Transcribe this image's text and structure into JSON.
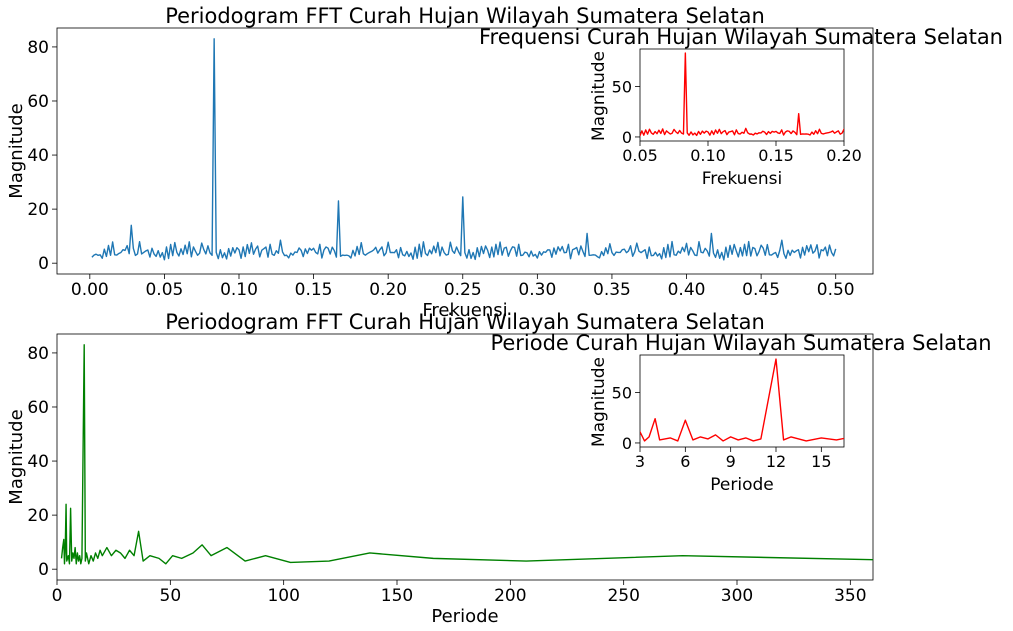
{
  "chart_data": [
    {
      "type": "line",
      "title": "Periodogram FFT Curah Hujan Wilayah Sumatera Selatan",
      "xlabel": "Frekuensi",
      "ylabel": "Magnitude",
      "xlim": [
        -0.022,
        0.525
      ],
      "ylim": [
        -4,
        87
      ],
      "xticks": [
        "0.00",
        "0.05",
        "0.10",
        "0.15",
        "0.20",
        "0.25",
        "0.30",
        "0.35",
        "0.40",
        "0.45",
        "0.50"
      ],
      "yticks": [
        "0",
        "20",
        "40",
        "60",
        "80"
      ],
      "grid": false,
      "series": [
        {
          "color": "#1f77b4",
          "base": [
            4,
            3,
            5,
            3,
            4,
            2,
            6,
            3,
            7,
            4,
            8,
            5,
            3,
            6,
            4,
            7,
            5,
            8,
            4,
            6,
            7,
            3,
            5,
            8,
            6,
            4,
            7,
            5,
            3,
            6
          ],
          "peaks": [
            {
              "x": 0.0278,
              "y": 14
            },
            {
              "x": 0.0833,
              "y": 83
            },
            {
              "x": 0.1667,
              "y": 23
            },
            {
              "x": 0.25,
              "y": 24.5
            },
            {
              "x": 0.3333,
              "y": 11
            },
            {
              "x": 0.4167,
              "y": 11
            },
            {
              "x": 0.1278,
              "y": 8.5
            },
            {
              "x": 0.4639,
              "y": 8.5
            }
          ],
          "x_range": [
            0.0014,
            0.5
          ],
          "n_points": 360
        }
      ],
      "inset": {
        "title": "Frequensi Curah Hujan Wilayah Sumatera Selatan",
        "xlabel": "Frekuensi",
        "ylabel": "Magnitude",
        "xlim": [
          0.05,
          0.2
        ],
        "ylim": [
          -4,
          87
        ],
        "xticks": [
          "0.05",
          "0.10",
          "0.15",
          "0.20"
        ],
        "yticks": [
          "0",
          "50"
        ],
        "color": "#ff0000"
      }
    },
    {
      "type": "line",
      "title": "Periodogram FFT Curah Hujan Wilayah Sumatera Selatan",
      "xlabel": "Periode",
      "ylabel": "Magnitude",
      "xlim": [
        0,
        360
      ],
      "ylim": [
        -4,
        87
      ],
      "xticks": [
        "0",
        "50",
        "100",
        "150",
        "200",
        "250",
        "300",
        "350"
      ],
      "yticks": [
        "0",
        "20",
        "40",
        "60",
        "80"
      ],
      "grid": false,
      "series": [
        {
          "color": "#008000",
          "points": [
            [
              2,
              4
            ],
            [
              2.5,
              8
            ],
            [
              3,
              11
            ],
            [
              3.3,
              2
            ],
            [
              3.6,
              6
            ],
            [
              4,
              24
            ],
            [
              4.3,
              3
            ],
            [
              5,
              5
            ],
            [
              5.5,
              2
            ],
            [
              6,
              22.5
            ],
            [
              6.5,
              3
            ],
            [
              7,
              6
            ],
            [
              7.5,
              4
            ],
            [
              8,
              8
            ],
            [
              8.5,
              2
            ],
            [
              9,
              6
            ],
            [
              9.5,
              3
            ],
            [
              10,
              5
            ],
            [
              10.5,
              2
            ],
            [
              11,
              4
            ],
            [
              12,
              83
            ],
            [
              12.5,
              3
            ],
            [
              13,
              6
            ],
            [
              14,
              2
            ],
            [
              15,
              5
            ],
            [
              16,
              3
            ],
            [
              17,
              6
            ],
            [
              18,
              4
            ],
            [
              19,
              7
            ],
            [
              20,
              5
            ],
            [
              22,
              8
            ],
            [
              24,
              5
            ],
            [
              26,
              7
            ],
            [
              28,
              6
            ],
            [
              30,
              4
            ],
            [
              32,
              7
            ],
            [
              34,
              5
            ],
            [
              36,
              14
            ],
            [
              38,
              3
            ],
            [
              41,
              5
            ],
            [
              45,
              4
            ],
            [
              48,
              2
            ],
            [
              51,
              5
            ],
            [
              55,
              4
            ],
            [
              60,
              6
            ],
            [
              64,
              9
            ],
            [
              68,
              5
            ],
            [
              75,
              8
            ],
            [
              83,
              3
            ],
            [
              92,
              5
            ],
            [
              103,
              2.5
            ],
            [
              120,
              3
            ],
            [
              138,
              6
            ],
            [
              166,
              4
            ],
            [
              207,
              3
            ],
            [
              276,
              5
            ],
            [
              360,
              3.5
            ]
          ]
        }
      ],
      "inset": {
        "title": "Periode Curah Hujan Wilayah Sumatera Selatan",
        "xlabel": "Periode",
        "ylabel": "Magnitude",
        "xlim": [
          3,
          16.5
        ],
        "ylim": [
          -4,
          87
        ],
        "xticks": [
          "3",
          "6",
          "9",
          "12",
          "15"
        ],
        "yticks": [
          "0",
          "50"
        ],
        "color": "#ff0000"
      }
    }
  ]
}
